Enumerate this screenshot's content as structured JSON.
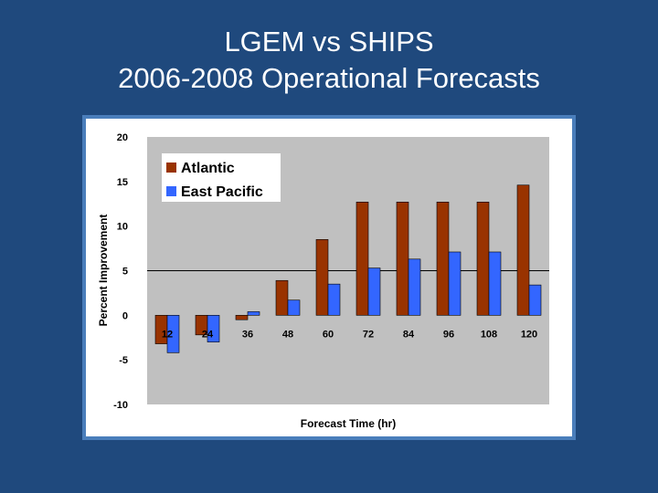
{
  "slide": {
    "title_line1": "LGEM vs SHIPS",
    "title_line2": "2006-2008 Operational Forecasts"
  },
  "colors": {
    "background": "#1f497d",
    "frame_border": "#4a7ebb",
    "plot_area": "#c0c0c0",
    "atlantic": "#993300",
    "east_pacific": "#3366ff"
  },
  "chart_data": {
    "type": "bar",
    "title": "",
    "xlabel": "Forecast Time (hr)",
    "ylabel": "Percent Improvement",
    "categories": [
      "12",
      "24",
      "36",
      "48",
      "60",
      "72",
      "84",
      "96",
      "108",
      "120"
    ],
    "series": [
      {
        "name": "Atlantic",
        "values": [
          -3.2,
          -2.2,
          -0.5,
          3.9,
          8.5,
          12.7,
          12.7,
          12.7,
          12.7,
          14.6
        ]
      },
      {
        "name": "East Pacific",
        "values": [
          -4.2,
          -3.0,
          0.4,
          1.7,
          3.5,
          5.3,
          6.3,
          7.1,
          7.1,
          3.4
        ]
      }
    ],
    "ylim": [
      -10,
      20
    ],
    "yticks": [
      20,
      15,
      10,
      5,
      0,
      -5,
      -10
    ],
    "reference_line": 5,
    "grid": false,
    "legend_position": "top-left"
  }
}
